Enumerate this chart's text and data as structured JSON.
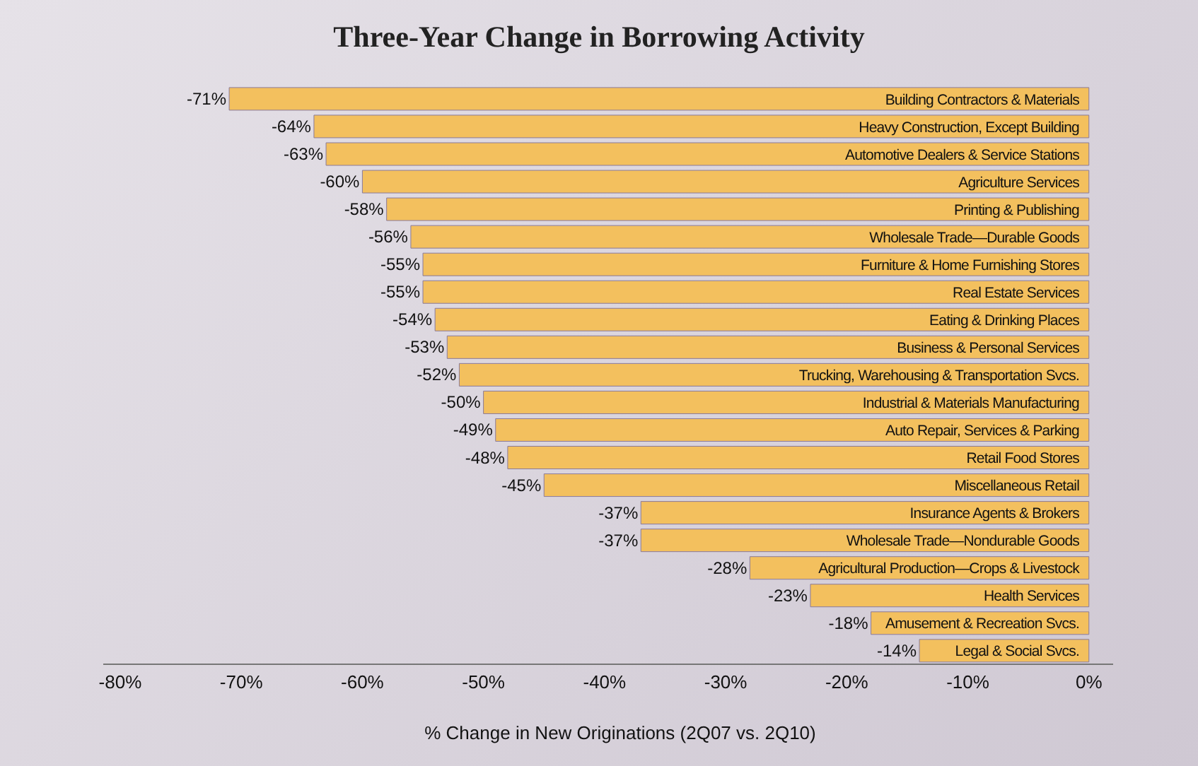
{
  "chart_data": {
    "type": "bar",
    "orientation": "horizontal",
    "title": "Three-Year Change in Borrowing Activity",
    "xlabel": "% Change in New Originations (2Q07 vs. 2Q10)",
    "categories": [
      "Building Contractors & Materials",
      "Heavy Construction, Except Building",
      "Automotive Dealers & Service Stations",
      "Agriculture Services",
      "Printing & Publishing",
      "Wholesale Trade—Durable Goods",
      "Furniture & Home Furnishing Stores",
      "Real Estate Services",
      "Eating & Drinking Places",
      "Business & Personal Services",
      "Trucking, Warehousing & Transportation Svcs.",
      "Industrial & Materials Manufacturing",
      "Auto Repair, Services & Parking",
      "Retail Food Stores",
      "Miscellaneous Retail",
      "Insurance Agents & Brokers",
      "Wholesale Trade—Nondurable Goods",
      "Agricultural Production—Crops & Livestock",
      "Health Services",
      "Amusement & Recreation Svcs.",
      "Legal & Social Svcs."
    ],
    "values": [
      -71,
      -64,
      -63,
      -60,
      -58,
      -56,
      -55,
      -55,
      -54,
      -53,
      -52,
      -50,
      -49,
      -48,
      -45,
      -37,
      -37,
      -28,
      -23,
      -18,
      -14
    ],
    "color": "#f3c05e",
    "value_labels": [
      "-71%",
      "-64%",
      "-63%",
      "-60%",
      "-58%",
      "-56%",
      "-55%",
      "-55%",
      "-54%",
      "-53%",
      "-52%",
      "-50%",
      "-49%",
      "-48%",
      "-45%",
      "-37%",
      "-37%",
      "-28%",
      "-23%",
      "-18%",
      "-14%"
    ],
    "xlim": [
      -81.4,
      2
    ],
    "xticks": [
      {
        "value": -80,
        "label": "-80%"
      },
      {
        "value": -70,
        "label": "-70%"
      },
      {
        "value": -60,
        "label": "-60%"
      },
      {
        "value": -50,
        "label": "-50%"
      },
      {
        "value": -40,
        "label": "-40%"
      },
      {
        "value": -30,
        "label": "-30%"
      },
      {
        "value": -20,
        "label": "-20%"
      },
      {
        "value": -10,
        "label": "-10%"
      },
      {
        "value": 0,
        "label": "0%"
      }
    ]
  }
}
